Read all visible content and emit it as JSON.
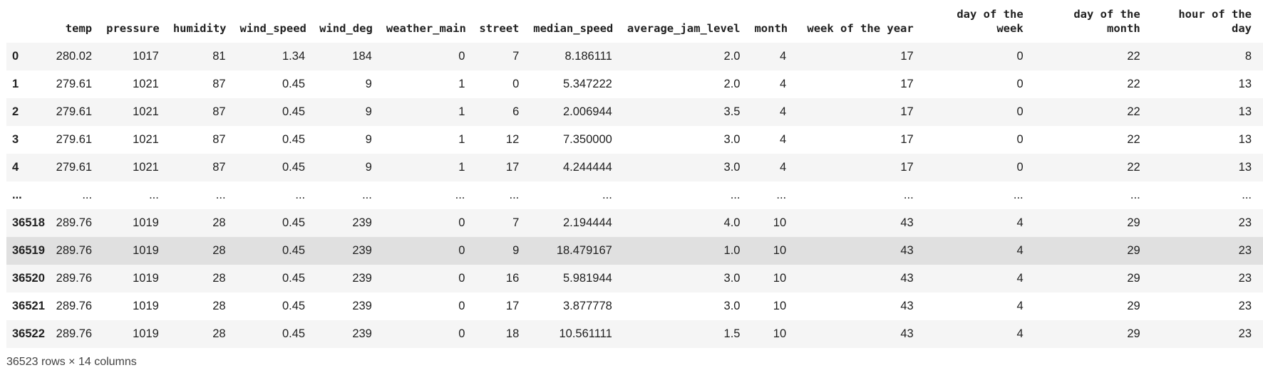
{
  "columns": [
    "",
    "temp",
    "pressure",
    "humidity",
    "wind_speed",
    "wind_deg",
    "weather_main",
    "street",
    "median_speed",
    "average_jam_level",
    "month",
    "week of the year",
    "day of the week",
    "day of the month",
    "hour of the day"
  ],
  "rows": [
    [
      "0",
      "280.02",
      "1017",
      "81",
      "1.34",
      "184",
      "0",
      "7",
      "8.186111",
      "2.0",
      "4",
      "17",
      "0",
      "22",
      "8"
    ],
    [
      "1",
      "279.61",
      "1021",
      "87",
      "0.45",
      "9",
      "1",
      "0",
      "5.347222",
      "2.0",
      "4",
      "17",
      "0",
      "22",
      "13"
    ],
    [
      "2",
      "279.61",
      "1021",
      "87",
      "0.45",
      "9",
      "1",
      "6",
      "2.006944",
      "3.5",
      "4",
      "17",
      "0",
      "22",
      "13"
    ],
    [
      "3",
      "279.61",
      "1021",
      "87",
      "0.45",
      "9",
      "1",
      "12",
      "7.350000",
      "3.0",
      "4",
      "17",
      "0",
      "22",
      "13"
    ],
    [
      "4",
      "279.61",
      "1021",
      "87",
      "0.45",
      "9",
      "1",
      "17",
      "4.244444",
      "3.0",
      "4",
      "17",
      "0",
      "22",
      "13"
    ],
    [
      "...",
      "...",
      "...",
      "...",
      "...",
      "...",
      "...",
      "...",
      "...",
      "...",
      "...",
      "...",
      "...",
      "...",
      "..."
    ],
    [
      "36518",
      "289.76",
      "1019",
      "28",
      "0.45",
      "239",
      "0",
      "7",
      "2.194444",
      "4.0",
      "10",
      "43",
      "4",
      "29",
      "23"
    ],
    [
      "36519",
      "289.76",
      "1019",
      "28",
      "0.45",
      "239",
      "0",
      "9",
      "18.479167",
      "1.0",
      "10",
      "43",
      "4",
      "29",
      "23"
    ],
    [
      "36520",
      "289.76",
      "1019",
      "28",
      "0.45",
      "239",
      "0",
      "16",
      "5.981944",
      "3.0",
      "10",
      "43",
      "4",
      "29",
      "23"
    ],
    [
      "36521",
      "289.76",
      "1019",
      "28",
      "0.45",
      "239",
      "0",
      "17",
      "3.877778",
      "3.0",
      "10",
      "43",
      "4",
      "29",
      "23"
    ],
    [
      "36522",
      "289.76",
      "1019",
      "28",
      "0.45",
      "239",
      "0",
      "18",
      "10.561111",
      "1.5",
      "10",
      "43",
      "4",
      "29",
      "23"
    ]
  ],
  "hovered_row_index": 7,
  "footer": {
    "shape": "36523 rows × 14 columns"
  },
  "colors": {
    "stripe": "#f5f5f5",
    "hover": "#e0e0e0",
    "text": "#212121"
  }
}
